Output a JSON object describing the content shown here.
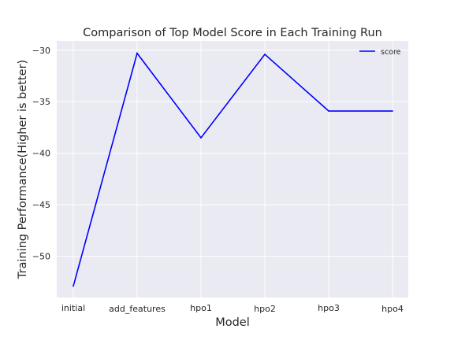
{
  "chart_data": {
    "type": "line",
    "title": "Comparison of Top Model Score in Each Training Run",
    "xlabel": "Model",
    "ylabel": "Training Performance(Higher is better)",
    "categories": [
      "initial",
      "add_features",
      "hpo1",
      "hpo2",
      "hpo3",
      "hpo4"
    ],
    "series": [
      {
        "name": "score",
        "values": [
          -52.9,
          -30.3,
          -38.5,
          -30.4,
          -35.9,
          -35.9
        ],
        "color": "#0000ff"
      }
    ],
    "yticks": [
      -30,
      -35,
      -40,
      -45,
      -50
    ],
    "ytick_labels": [
      "−30",
      "−35",
      "−40",
      "−45",
      "−50"
    ],
    "ylim": [
      -54.0,
      -29.1
    ],
    "grid": true,
    "legend_position": "upper right",
    "background": "#eaeaf2",
    "grid_color": "#ffffff"
  }
}
